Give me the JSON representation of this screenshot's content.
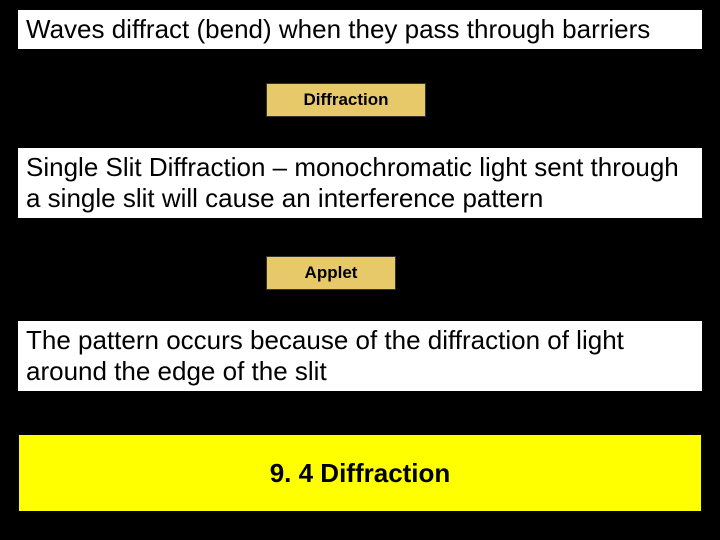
{
  "colors": {
    "background": "#000000",
    "text_block_bg": "#ffffff",
    "text_block_fg": "#000000",
    "label_bg": "#e8c969",
    "label_fg": "#000000",
    "footer_bg": "#ffff00",
    "footer_fg": "#000000"
  },
  "typography": {
    "body_fontsize": 26,
    "label_fontsize": 17,
    "footer_fontsize": 26
  },
  "block1": {
    "text": "Waves diffract (bend) when they pass through barriers"
  },
  "label1": {
    "text": "Diffraction"
  },
  "block2": {
    "text": "Single Slit Diffraction – monochromatic light sent through a single slit will cause an interference pattern"
  },
  "label2": {
    "text": "Applet"
  },
  "block3": {
    "text": "The pattern occurs because of the diffraction of light around the edge of the slit"
  },
  "footer": {
    "text": "9. 4 Diffraction"
  }
}
